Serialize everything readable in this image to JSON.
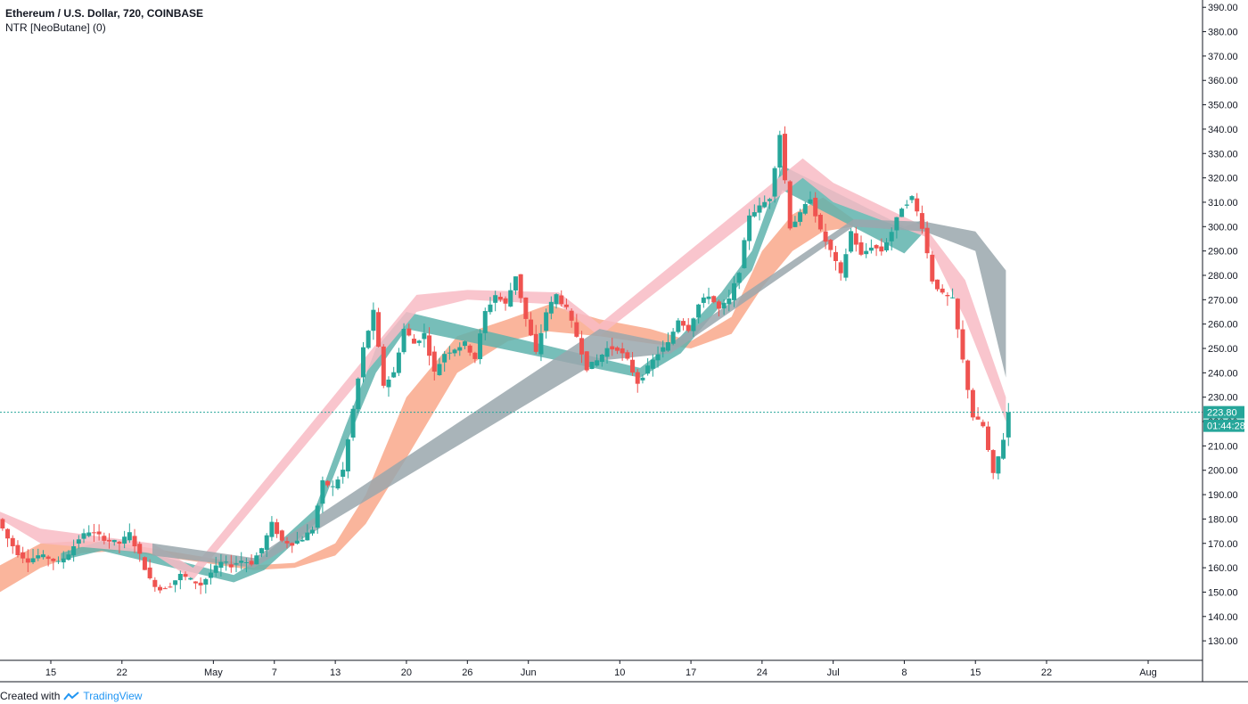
{
  "header": {
    "symbol_line": "Ethereum / U.S. Dollar, 720, COINBASE",
    "indicator_line": "NTR [NeoButane] (0)"
  },
  "footer": {
    "created_with": "Created with",
    "brand": "TradingView"
  },
  "colors": {
    "up": "#26a69a",
    "down": "#ef5350",
    "band_green": "#5fb3ad",
    "band_pink": "#f8bbc4",
    "band_orange": "#f9a88b",
    "band_gray": "#9aa7ad",
    "price_line": "#26a69a",
    "axis": "#131722"
  },
  "chart_data": {
    "type": "candlestick",
    "title": "Ethereum / U.S. Dollar, 720, COINBASE",
    "y_axis": {
      "range": [
        122,
        393
      ],
      "ticks": [
        "130.00",
        "140.00",
        "150.00",
        "160.00",
        "170.00",
        "180.00",
        "190.00",
        "200.00",
        "210.00",
        "220.00",
        "230.00",
        "240.00",
        "250.00",
        "260.00",
        "270.00",
        "280.00",
        "290.00",
        "300.00",
        "310.00",
        "320.00",
        "330.00",
        "340.00",
        "350.00",
        "360.00",
        "370.00",
        "380.00",
        "390.00"
      ]
    },
    "x_axis": {
      "range": [
        "Apr 10",
        "Aug 1"
      ],
      "ticks": [
        {
          "label": "15",
          "date": "Apr 15"
        },
        {
          "label": "22",
          "date": "Apr 22"
        },
        {
          "label": "May",
          "date": "May 1"
        },
        {
          "label": "7",
          "date": "May 7"
        },
        {
          "label": "13",
          "date": "May 13"
        },
        {
          "label": "20",
          "date": "May 20"
        },
        {
          "label": "26",
          "date": "May 26"
        },
        {
          "label": "Jun",
          "date": "Jun 1"
        },
        {
          "label": "10",
          "date": "Jun 10"
        },
        {
          "label": "17",
          "date": "Jun 17"
        },
        {
          "label": "24",
          "date": "Jun 24"
        },
        {
          "label": "Jul",
          "date": "Jul 1"
        },
        {
          "label": "8",
          "date": "Jul 8"
        },
        {
          "label": "15",
          "date": "Jul 15"
        },
        {
          "label": "22",
          "date": "Jul 22"
        },
        {
          "label": "Aug",
          "date": "Aug 1"
        }
      ]
    },
    "last_price": {
      "value": 223.8,
      "label": "223.80",
      "countdown": "01:44:28"
    },
    "price_path": [
      [
        "Apr 10",
        180
      ],
      [
        "Apr 11",
        172
      ],
      [
        "Apr 12",
        166
      ],
      [
        "Apr 13",
        163
      ],
      [
        "Apr 14",
        165
      ],
      [
        "Apr 15",
        164
      ],
      [
        "Apr 16",
        162
      ],
      [
        "Apr 17",
        166
      ],
      [
        "Apr 18",
        172
      ],
      [
        "Apr 19",
        175
      ],
      [
        "Apr 20",
        173
      ],
      [
        "Apr 21",
        171
      ],
      [
        "Apr 22",
        170
      ],
      [
        "Apr 23",
        174
      ],
      [
        "Apr 24",
        165
      ],
      [
        "Apr 25",
        155
      ],
      [
        "Apr 26",
        151
      ],
      [
        "Apr 27",
        153
      ],
      [
        "Apr 28",
        157
      ],
      [
        "Apr 29",
        155
      ],
      [
        "Apr 30",
        153
      ],
      [
        "May 1",
        158
      ],
      [
        "May 2",
        162
      ],
      [
        "May 3",
        161
      ],
      [
        "May 4",
        163
      ],
      [
        "May 5",
        162
      ],
      [
        "May 6",
        168
      ],
      [
        "May 7",
        178
      ],
      [
        "May 8",
        171
      ],
      [
        "May 9",
        170
      ],
      [
        "May 10",
        172
      ],
      [
        "May 11",
        176
      ],
      [
        "May 12",
        195
      ],
      [
        "May 13",
        193
      ],
      [
        "May 14",
        200
      ],
      [
        "May 15",
        225
      ],
      [
        "May 16",
        250
      ],
      [
        "May 17",
        265
      ],
      [
        "May 18",
        235
      ],
      [
        "May 19",
        240
      ],
      [
        "May 20",
        258
      ],
      [
        "May 21",
        252
      ],
      [
        "May 22",
        256
      ],
      [
        "May 23",
        240
      ],
      [
        "May 24",
        248
      ],
      [
        "May 25",
        250
      ],
      [
        "May 26",
        252
      ],
      [
        "May 27",
        246
      ],
      [
        "May 28",
        265
      ],
      [
        "May 29",
        272
      ],
      [
        "May 30",
        268
      ],
      [
        "May 31",
        280
      ],
      [
        "Jun 1",
        262
      ],
      [
        "Jun 2",
        248
      ],
      [
        "Jun 3",
        265
      ],
      [
        "Jun 4",
        272
      ],
      [
        "Jun 5",
        266
      ],
      [
        "Jun 6",
        255
      ],
      [
        "Jun 7",
        242
      ],
      [
        "Jun 8",
        245
      ],
      [
        "Jun 9",
        250
      ],
      [
        "Jun 10",
        250
      ],
      [
        "Jun 11",
        245
      ],
      [
        "Jun 12",
        236
      ],
      [
        "Jun 13",
        242
      ],
      [
        "Jun 14",
        248
      ],
      [
        "Jun 15",
        252
      ],
      [
        "Jun 16",
        262
      ],
      [
        "Jun 17",
        258
      ],
      [
        "Jun 18",
        268
      ],
      [
        "Jun 19",
        272
      ],
      [
        "Jun 20",
        266
      ],
      [
        "Jun 21",
        270
      ],
      [
        "Jun 22",
        282
      ],
      [
        "Jun 23",
        305
      ],
      [
        "Jun 24",
        308
      ],
      [
        "Jun 25",
        312
      ],
      [
        "Jun 26",
        338
      ],
      [
        "Jun 27",
        300
      ],
      [
        "Jun 28",
        305
      ],
      [
        "Jun 29",
        312
      ],
      [
        "Jun 30",
        298
      ],
      [
        "Jul 1",
        290
      ],
      [
        "Jul 2",
        280
      ],
      [
        "Jul 3",
        298
      ],
      [
        "Jul 4",
        288
      ],
      [
        "Jul 5",
        292
      ],
      [
        "Jul 6",
        290
      ],
      [
        "Jul 7",
        298
      ],
      [
        "Jul 8",
        308
      ],
      [
        "Jul 9",
        312
      ],
      [
        "Jul 10",
        300
      ],
      [
        "Jul 11",
        278
      ],
      [
        "Jul 12",
        272
      ],
      [
        "Jul 13",
        270
      ],
      [
        "Jul 14",
        245
      ],
      [
        "Jul 15",
        222
      ],
      [
        "Jul 16",
        218
      ],
      [
        "Jul 17",
        198
      ],
      [
        "Jul 18",
        213
      ],
      [
        "Jul 18.5",
        223.8
      ]
    ],
    "ribbons": [
      {
        "color_key": "band_orange",
        "values": [
          [
            "Apr 10",
            150,
            161
          ],
          [
            "Apr 14",
            160,
            170
          ],
          [
            "Apr 18",
            166,
            171
          ],
          [
            "Apr 22",
            167,
            170
          ],
          [
            "May 5",
            159,
            161
          ],
          [
            "May 9",
            160,
            162
          ],
          [
            "May 13",
            165,
            170
          ],
          [
            "May 16",
            178,
            190
          ],
          [
            "May 20",
            205,
            230
          ],
          [
            "May 25",
            240,
            255
          ],
          [
            "May 30",
            253,
            262
          ],
          [
            "Jun 3",
            257,
            268
          ],
          [
            "Jun 8",
            255,
            262
          ],
          [
            "Jun 13",
            252,
            258
          ],
          [
            "Jun 17",
            250,
            253
          ],
          [
            "Jun 21",
            256,
            263
          ],
          [
            "Jun 24",
            275,
            290
          ],
          [
            "Jun 27",
            290,
            305
          ],
          [
            "Jun 30",
            298,
            312
          ],
          [
            "Jul 3",
            300,
            303
          ]
        ]
      },
      {
        "color_key": "band_green",
        "values": [
          [
            "Apr 16",
            163,
            166
          ],
          [
            "Apr 20",
            167,
            171
          ],
          [
            "May 3",
            154,
            157
          ],
          [
            "May 6",
            159,
            165
          ],
          [
            "May 11",
            178,
            184
          ],
          [
            "May 14",
            210,
            218
          ],
          [
            "May 17",
            240,
            250
          ],
          [
            "May 20",
            258,
            265
          ],
          [
            "Jun 12",
            238,
            242
          ],
          [
            "Jun 16",
            248,
            255
          ],
          [
            "Jun 20",
            268,
            273
          ],
          [
            "Jun 23",
            282,
            290
          ],
          [
            "Jun 26",
            315,
            325
          ],
          [
            "Jul 8",
            289,
            300
          ],
          [
            "Jul 10",
            298,
            303
          ]
        ]
      },
      {
        "color_key": "band_pink",
        "values": [
          [
            "Apr 10",
            180,
            183
          ],
          [
            "Apr 14",
            170,
            176
          ],
          [
            "Apr 25",
            166,
            170
          ],
          [
            "Apr 29",
            155,
            160
          ],
          [
            "May 21",
            265,
            272
          ],
          [
            "May 26",
            270,
            274
          ],
          [
            "Jun 4",
            268,
            273
          ],
          [
            "Jun 8",
            255,
            260
          ],
          [
            "Jun 28",
            320,
            328
          ],
          [
            "Jul 1",
            310,
            318
          ],
          [
            "Jul 10",
            296,
            300
          ],
          [
            "Jul 14",
            262,
            278
          ],
          [
            "Jul 18",
            220,
            230
          ]
        ]
      },
      {
        "color_key": "band_gray",
        "values": [
          [
            "Apr 25",
            165,
            170
          ],
          [
            "May 5",
            160,
            164
          ],
          [
            "Jun 8",
            245,
            258
          ],
          [
            "Jun 15",
            248,
            252
          ],
          [
            "Jul 3",
            300,
            303
          ],
          [
            "Jul 10",
            298,
            302
          ],
          [
            "Jul 15",
            290,
            298
          ],
          [
            "Jul 18",
            238,
            282
          ]
        ]
      }
    ]
  }
}
